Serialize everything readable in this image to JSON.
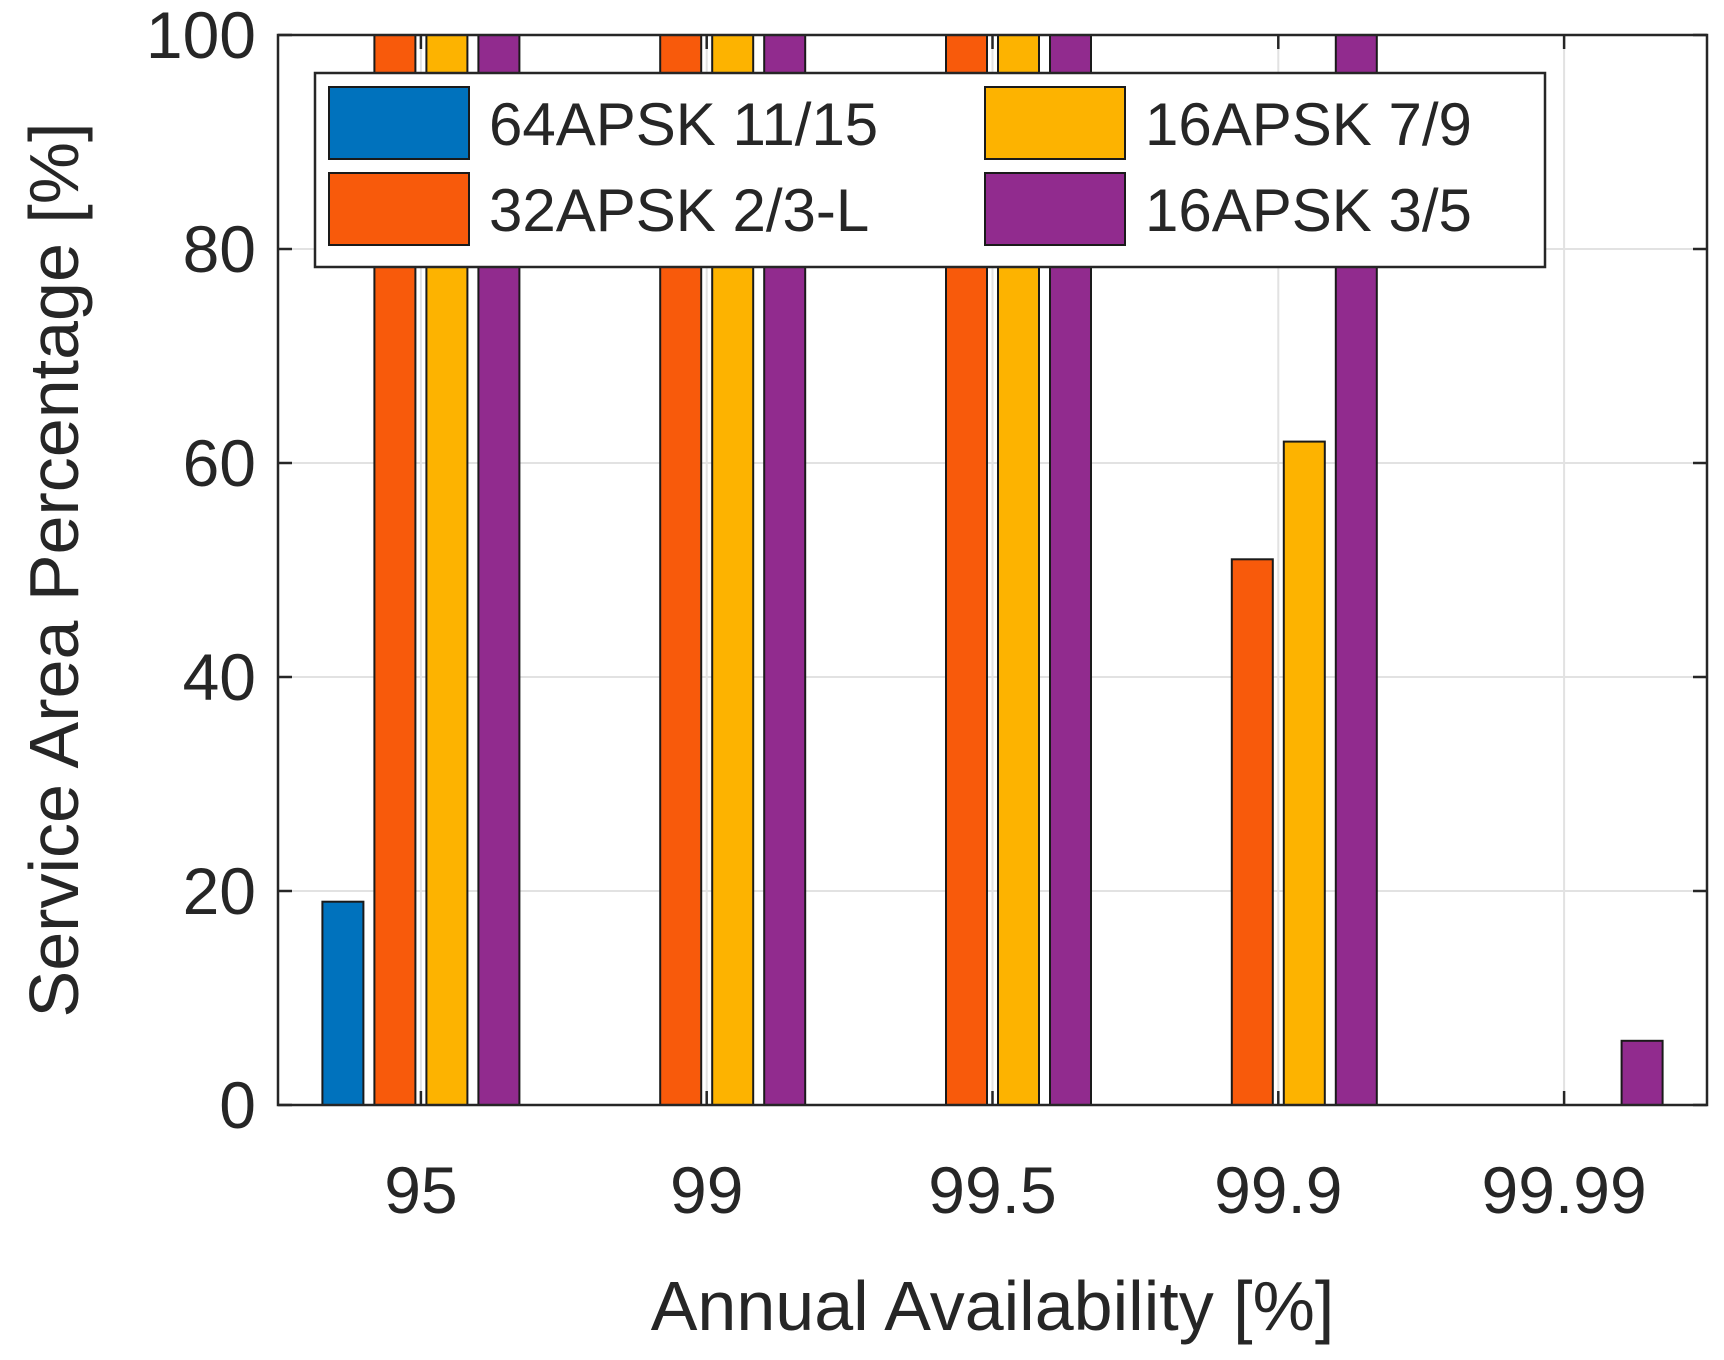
{
  "chart_data": {
    "type": "bar",
    "title": "",
    "xlabel": "Annual Availability [%]",
    "ylabel": "Service Area Percentage [%]",
    "categories": [
      "95",
      "99",
      "99.5",
      "99.9",
      "99.99"
    ],
    "ylim": [
      0,
      100
    ],
    "yticks": [
      "0",
      "20",
      "40",
      "60",
      "80",
      "100"
    ],
    "grid": true,
    "legend_position": "top-left",
    "series": [
      {
        "name": "64APSK 11/15",
        "color": "#0072BD",
        "values": [
          19,
          0,
          0,
          0,
          0
        ]
      },
      {
        "name": "32APSK 2/3-L",
        "color": "#F85A0B",
        "values": [
          100,
          100,
          100,
          51,
          0
        ]
      },
      {
        "name": "16APSK 7/9",
        "color": "#FDB300",
        "values": [
          100,
          100,
          100,
          62,
          0
        ]
      },
      {
        "name": "16APSK 3/5",
        "color": "#912B8E",
        "values": [
          100,
          100,
          100,
          100,
          6
        ]
      }
    ]
  }
}
